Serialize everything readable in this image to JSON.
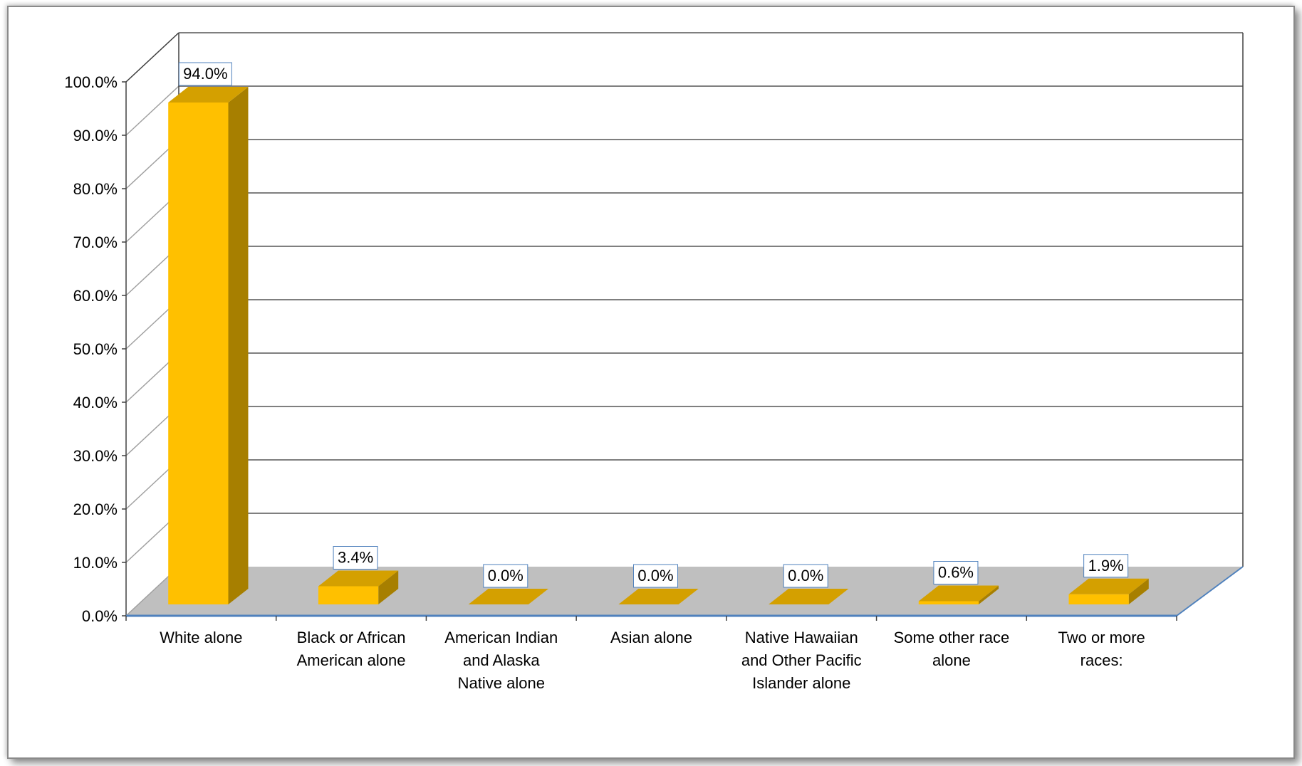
{
  "chart_data": {
    "type": "bar",
    "style": "3d-column",
    "categories": [
      [
        "White alone"
      ],
      [
        "Black or African",
        "American alone"
      ],
      [
        "American Indian",
        "and Alaska",
        "Native alone"
      ],
      [
        "Asian alone"
      ],
      [
        "Native Hawaiian",
        "and Other Pacific",
        "Islander alone"
      ],
      [
        "Some other race",
        "alone"
      ],
      [
        "Two or more",
        "races:"
      ]
    ],
    "values": [
      94.0,
      3.4,
      0.0,
      0.0,
      0.0,
      0.6,
      1.9
    ],
    "data_labels": [
      "94.0%",
      "3.4%",
      "0.0%",
      "0.0%",
      "0.0%",
      "0.6%",
      "1.9%"
    ],
    "y_ticks": [
      "0.0%",
      "10.0%",
      "20.0%",
      "30.0%",
      "40.0%",
      "50.0%",
      "60.0%",
      "70.0%",
      "80.0%",
      "90.0%",
      "100.0%"
    ],
    "ylim": [
      0,
      100
    ],
    "title": "",
    "xlabel": "",
    "ylabel": "",
    "grid": true,
    "legend": "none",
    "colors": {
      "bar_front": "#FFC000",
      "bar_side": "#A77F00",
      "bar_top": "#D4A000",
      "floor": "#BFBFBF",
      "gridline": "#7F7F7F",
      "axis_line": "#4F81BD",
      "frame": "#8A8A8A"
    }
  }
}
